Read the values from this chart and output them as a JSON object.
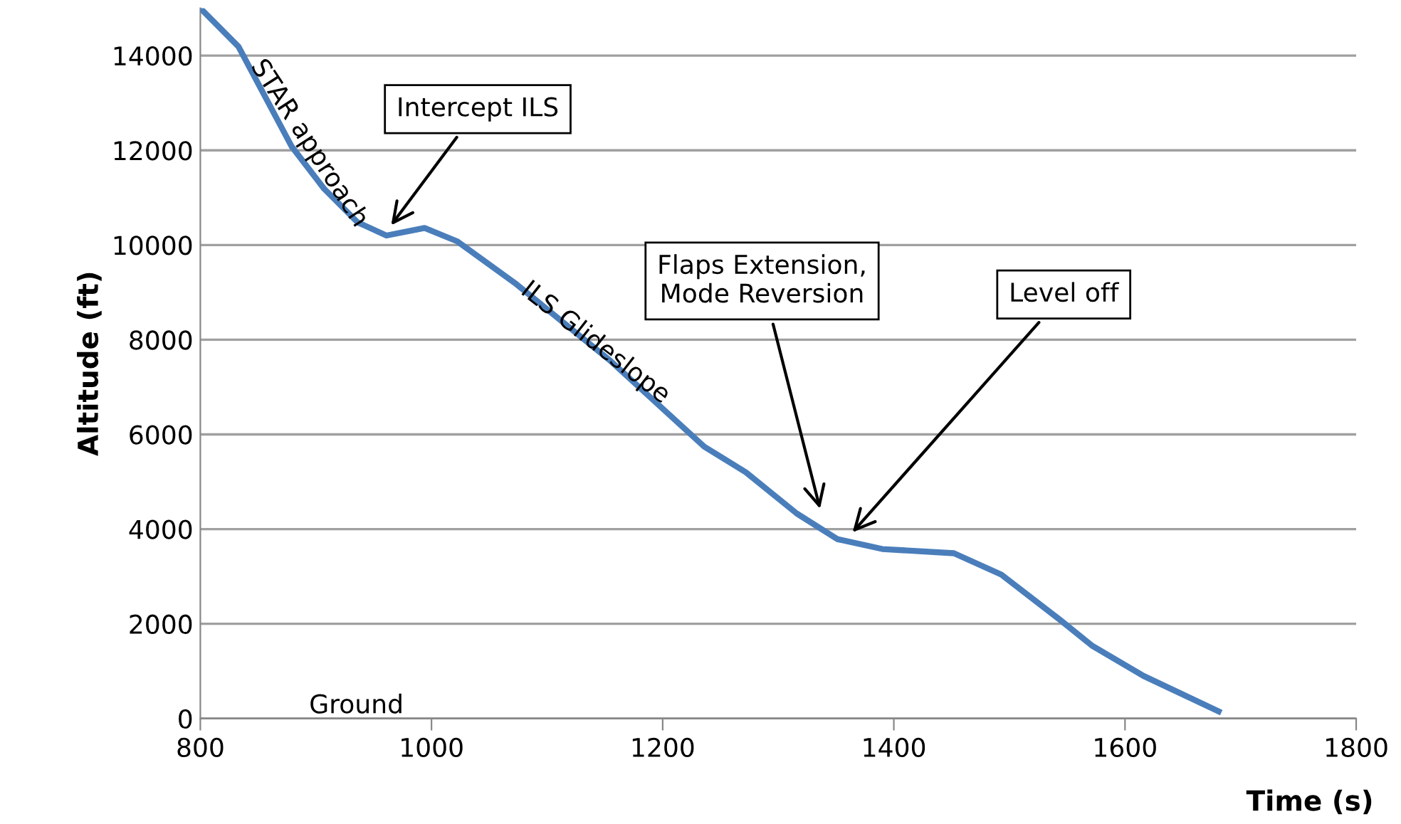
{
  "chart_data": {
    "type": "line",
    "xlabel": "Time (s)",
    "ylabel": "Altitude (ft)",
    "x": [
      800,
      833,
      879,
      907,
      936,
      961,
      994,
      1022,
      1072,
      1154,
      1236,
      1272,
      1316,
      1351,
      1390,
      1452,
      1493,
      1544,
      1572,
      1616,
      1681
    ],
    "series": [
      {
        "color": "#4a7ebb",
        "values": [
          15000,
          14190,
          12080,
          11190,
          10480,
          10200,
          10360,
          10080,
          9200,
          7570,
          5740,
          5200,
          4330,
          3790,
          3580,
          3490,
          3040,
          2080,
          1530,
          900,
          150
        ]
      }
    ],
    "xlim": [
      800,
      1800
    ],
    "xticks": [
      800,
      1000,
      1200,
      1400,
      1600,
      1800
    ],
    "ylim": [
      0,
      15000
    ],
    "yticks": [
      0,
      2000,
      4000,
      6000,
      8000,
      10000,
      12000,
      14000
    ],
    "grid": "y",
    "legend": false,
    "marker": "none",
    "line_style": "solid",
    "annotations": [
      "Intercept ILS",
      "Flaps Extension,\nMode Reversion",
      "Level off",
      "STAR approach",
      "ILS Glideslope",
      "Ground"
    ]
  }
}
